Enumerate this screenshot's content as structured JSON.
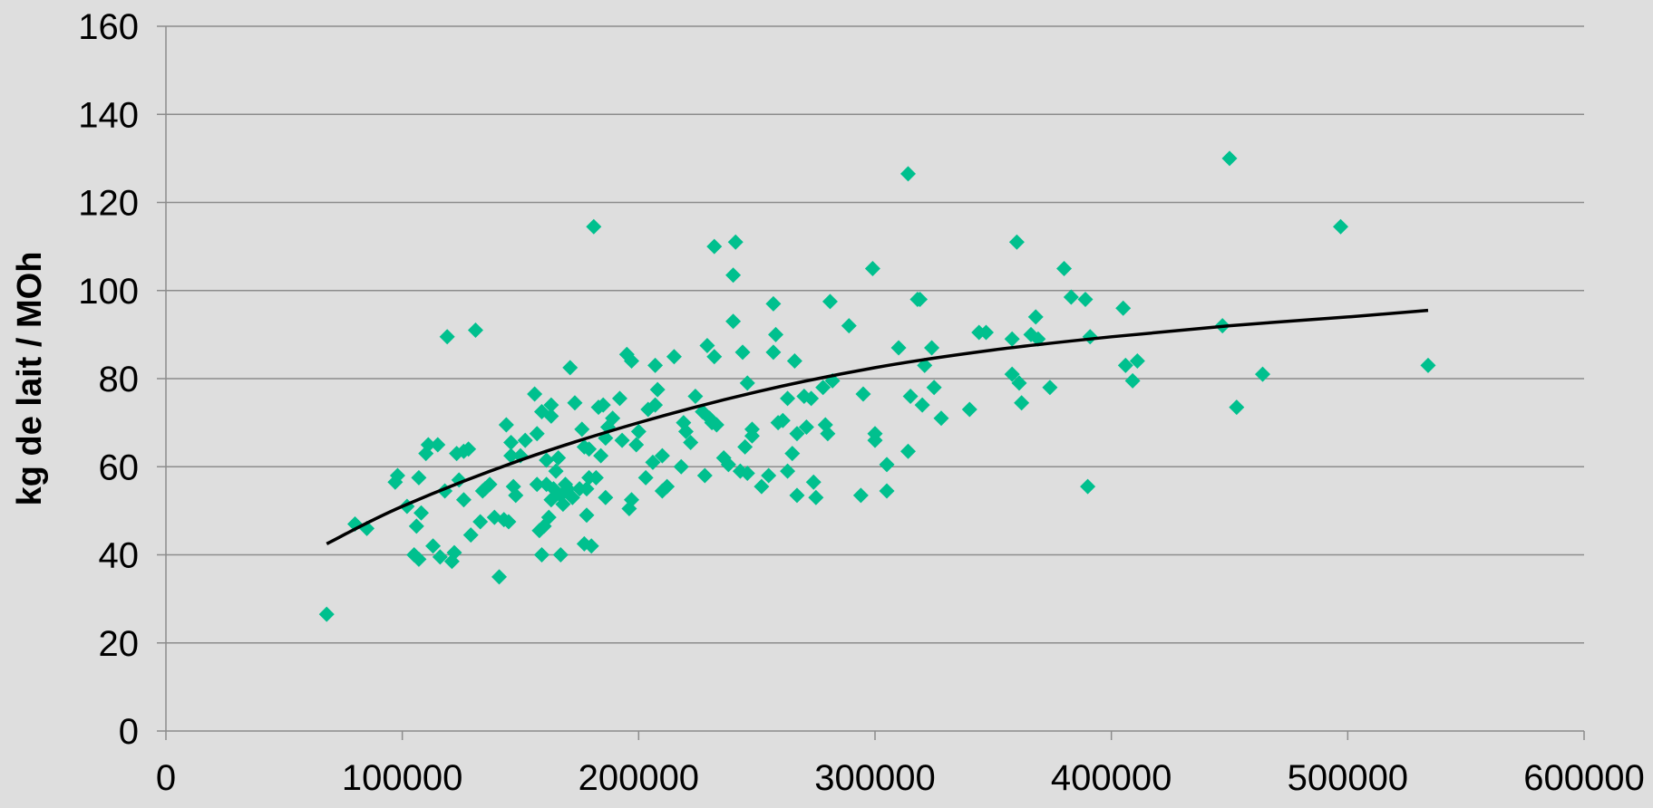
{
  "chart_data": {
    "type": "scatter",
    "title": "",
    "xlabel": "",
    "ylabel": "kg de lait / MOh",
    "xlim": [
      0,
      600000
    ],
    "ylim": [
      0,
      160
    ],
    "x_ticks": [
      "0",
      "100000",
      "200000",
      "300000",
      "400000",
      "500000",
      "600000"
    ],
    "y_ticks": [
      "0",
      "20",
      "40",
      "60",
      "80",
      "100",
      "120",
      "140",
      "160"
    ],
    "grid": "horizontal",
    "legend": "none",
    "marker": "diamond",
    "colors": {
      "points": "#00c08e",
      "trend": "#000000",
      "grid": "#8c8c8c",
      "background": "#dedede"
    },
    "series": [
      {
        "points": [
          [
            68000,
            26.5
          ],
          [
            80000,
            47
          ],
          [
            85000,
            46
          ],
          [
            97000,
            56.5
          ],
          [
            98000,
            58
          ],
          [
            102000,
            51
          ],
          [
            105000,
            40
          ],
          [
            106000,
            46.5
          ],
          [
            107000,
            39
          ],
          [
            107000,
            57.5
          ],
          [
            108000,
            49.5
          ],
          [
            110000,
            63
          ],
          [
            111000,
            65
          ],
          [
            113000,
            42
          ],
          [
            115000,
            65
          ],
          [
            116000,
            39.5
          ],
          [
            118000,
            54.5
          ],
          [
            119000,
            89.5
          ],
          [
            121000,
            38.5
          ],
          [
            122000,
            40.5
          ],
          [
            123000,
            63
          ],
          [
            124000,
            57
          ],
          [
            126000,
            52.5
          ],
          [
            126000,
            63.5
          ],
          [
            128000,
            64
          ],
          [
            129000,
            44.5
          ],
          [
            131000,
            91
          ],
          [
            133000,
            47.5
          ],
          [
            134000,
            54.5
          ],
          [
            135000,
            55
          ],
          [
            137000,
            56
          ],
          [
            139000,
            48.5
          ],
          [
            141000,
            35
          ],
          [
            143000,
            48
          ],
          [
            144000,
            69.5
          ],
          [
            145000,
            47.5
          ],
          [
            146000,
            62.5
          ],
          [
            146000,
            65.5
          ],
          [
            147000,
            55.5
          ],
          [
            148000,
            53.5
          ],
          [
            150000,
            62.5
          ],
          [
            152000,
            66
          ],
          [
            156000,
            76.5
          ],
          [
            157000,
            56
          ],
          [
            157000,
            67.5
          ],
          [
            158000,
            45.5
          ],
          [
            159000,
            72.5
          ],
          [
            159000,
            40
          ],
          [
            160000,
            46.5
          ],
          [
            161000,
            56
          ],
          [
            161000,
            61.5
          ],
          [
            162000,
            48.5
          ],
          [
            163000,
            52.5
          ],
          [
            163000,
            74
          ],
          [
            163000,
            71.5
          ],
          [
            164000,
            55
          ],
          [
            165000,
            59
          ],
          [
            166000,
            62
          ],
          [
            167000,
            40
          ],
          [
            167000,
            53.5
          ],
          [
            168000,
            51.5
          ],
          [
            169000,
            56
          ],
          [
            170000,
            55
          ],
          [
            171000,
            82.5
          ],
          [
            172000,
            53
          ],
          [
            173000,
            74.5
          ],
          [
            175000,
            55
          ],
          [
            176000,
            68.5
          ],
          [
            177000,
            64.5
          ],
          [
            177000,
            42.5
          ],
          [
            178000,
            49
          ],
          [
            178000,
            55
          ],
          [
            179000,
            57.5
          ],
          [
            179000,
            64
          ],
          [
            180000,
            42
          ],
          [
            181000,
            114.5
          ],
          [
            182000,
            57.5
          ],
          [
            183000,
            73.5
          ],
          [
            184000,
            62.5
          ],
          [
            185000,
            74
          ],
          [
            186000,
            53
          ],
          [
            186000,
            66.5
          ],
          [
            187000,
            69
          ],
          [
            189000,
            71
          ],
          [
            192000,
            75.5
          ],
          [
            193000,
            66
          ],
          [
            195000,
            85.5
          ],
          [
            196000,
            50.5
          ],
          [
            197000,
            84
          ],
          [
            197000,
            52.5
          ],
          [
            199000,
            65
          ],
          [
            200000,
            68
          ],
          [
            203000,
            57.5
          ],
          [
            204000,
            73
          ],
          [
            206000,
            61
          ],
          [
            207000,
            74
          ],
          [
            207000,
            83
          ],
          [
            208000,
            77.5
          ],
          [
            210000,
            62.5
          ],
          [
            210000,
            54.5
          ],
          [
            212000,
            55.5
          ],
          [
            215000,
            85
          ],
          [
            218000,
            60
          ],
          [
            219000,
            70
          ],
          [
            220000,
            68
          ],
          [
            222000,
            65.5
          ],
          [
            224000,
            76
          ],
          [
            227000,
            72.5
          ],
          [
            228000,
            58
          ],
          [
            229000,
            87.5
          ],
          [
            230000,
            71
          ],
          [
            231000,
            70
          ],
          [
            232000,
            110
          ],
          [
            232000,
            85
          ],
          [
            233000,
            69.5
          ],
          [
            236000,
            62
          ],
          [
            238000,
            60.5
          ],
          [
            240000,
            93
          ],
          [
            240000,
            103.5
          ],
          [
            241000,
            111
          ],
          [
            243000,
            59
          ],
          [
            244000,
            86
          ],
          [
            245000,
            64.5
          ],
          [
            246000,
            58.5
          ],
          [
            246000,
            79
          ],
          [
            248000,
            67
          ],
          [
            248000,
            68.5
          ],
          [
            252000,
            55.5
          ],
          [
            255000,
            58
          ],
          [
            257000,
            86
          ],
          [
            257000,
            97
          ],
          [
            258000,
            90
          ],
          [
            259000,
            70
          ],
          [
            261000,
            70.5
          ],
          [
            263000,
            59
          ],
          [
            263000,
            75.5
          ],
          [
            265000,
            63
          ],
          [
            266000,
            84
          ],
          [
            267000,
            53.5
          ],
          [
            267000,
            67.5
          ],
          [
            270000,
            76
          ],
          [
            271000,
            69
          ],
          [
            273000,
            75.5
          ],
          [
            274000,
            56.5
          ],
          [
            275000,
            53
          ],
          [
            278000,
            78
          ],
          [
            279000,
            69.5
          ],
          [
            280000,
            67.5
          ],
          [
            281000,
            97.5
          ],
          [
            282000,
            79.5
          ],
          [
            289000,
            92
          ],
          [
            294000,
            53.5
          ],
          [
            295000,
            76.5
          ],
          [
            299000,
            105
          ],
          [
            300000,
            66
          ],
          [
            300000,
            67.5
          ],
          [
            305000,
            60.5
          ],
          [
            305000,
            54.5
          ],
          [
            310000,
            87
          ],
          [
            314000,
            126.5
          ],
          [
            314000,
            63.5
          ],
          [
            315000,
            76
          ],
          [
            318000,
            98
          ],
          [
            319000,
            98
          ],
          [
            320000,
            74
          ],
          [
            321000,
            83
          ],
          [
            324000,
            87
          ],
          [
            325000,
            78
          ],
          [
            328000,
            71
          ],
          [
            340000,
            73
          ],
          [
            344000,
            90.5
          ],
          [
            347000,
            90.5
          ],
          [
            358000,
            89
          ],
          [
            358000,
            81
          ],
          [
            360000,
            111
          ],
          [
            361000,
            79
          ],
          [
            362000,
            74.5
          ],
          [
            366000,
            90
          ],
          [
            368000,
            94
          ],
          [
            369000,
            89
          ],
          [
            374000,
            78
          ],
          [
            380000,
            105
          ],
          [
            383000,
            98.5
          ],
          [
            389000,
            98
          ],
          [
            390000,
            55.5
          ],
          [
            391000,
            89.5
          ],
          [
            405000,
            96
          ],
          [
            406000,
            83
          ],
          [
            409000,
            79.5
          ],
          [
            411000,
            84
          ],
          [
            447000,
            92
          ],
          [
            450000,
            130
          ],
          [
            453000,
            73.5
          ],
          [
            464000,
            81
          ],
          [
            497000,
            114.5
          ],
          [
            534000,
            83
          ]
        ]
      }
    ],
    "trendline": {
      "type": "logarithmic-like",
      "points": [
        [
          68000,
          42.5
        ],
        [
          100000,
          51
        ],
        [
          150000,
          61.5
        ],
        [
          200000,
          70
        ],
        [
          250000,
          77
        ],
        [
          300000,
          82.5
        ],
        [
          350000,
          86.5
        ],
        [
          400000,
          89.5
        ],
        [
          450000,
          92
        ],
        [
          500000,
          94
        ],
        [
          534000,
          95.5
        ]
      ]
    }
  }
}
